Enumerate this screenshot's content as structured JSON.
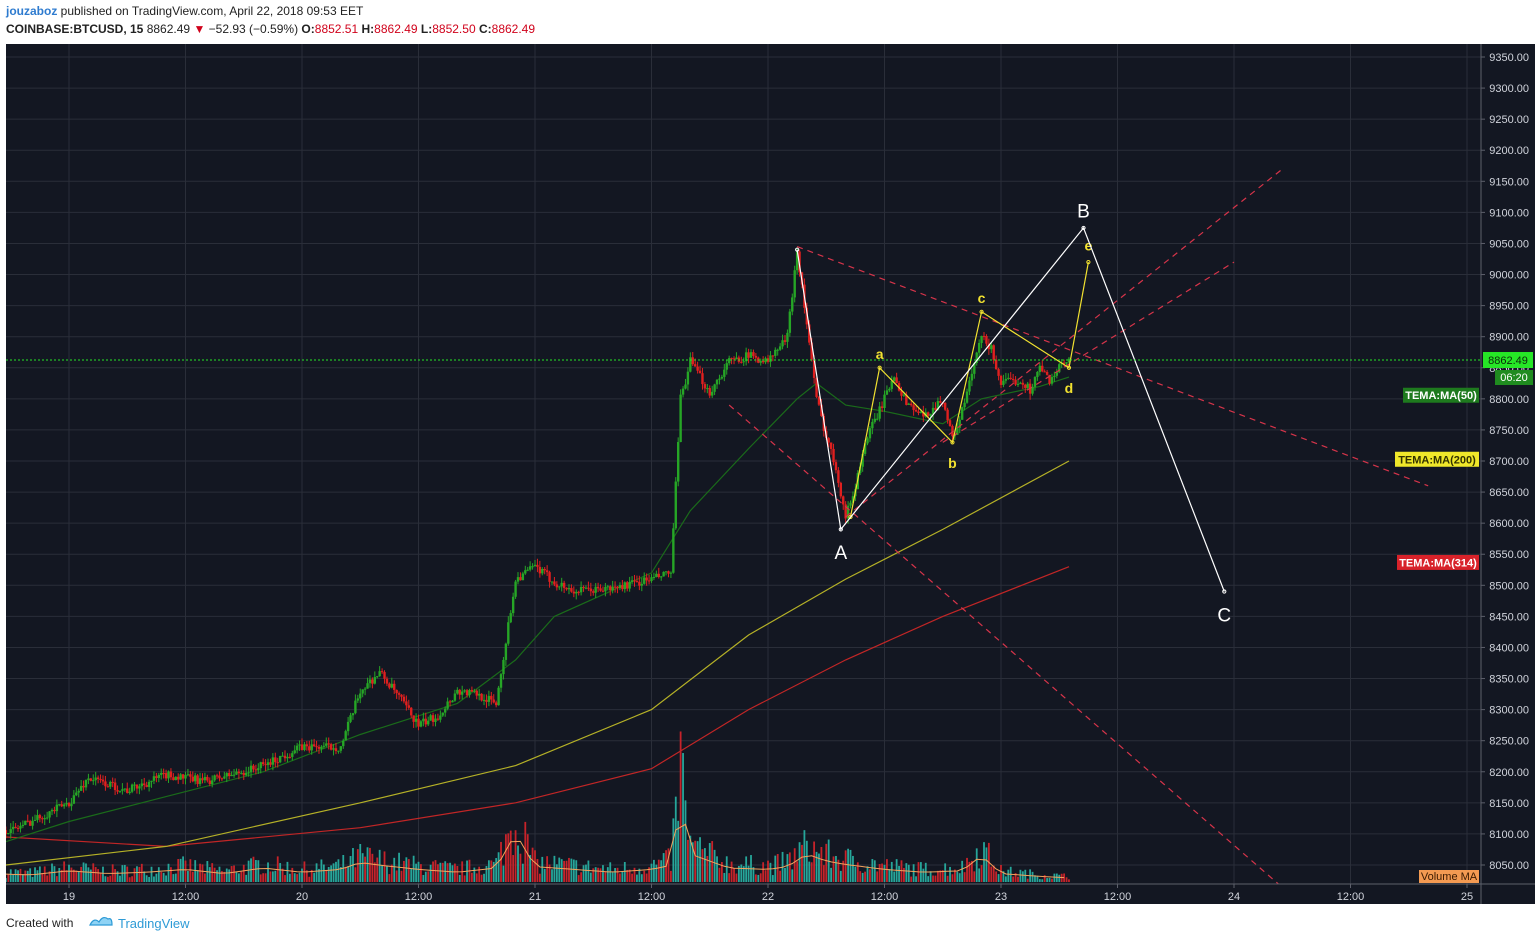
{
  "header": {
    "author": "jouzaboz",
    "published_text": " published on TradingView.com, April 22, 2018 09:53 EET",
    "symbol": "COINBASE:BTCUSD, 15",
    "last": "8862.49",
    "change": "−52.93 (−0.59%)",
    "o_label": "O:",
    "o_value": "8852.51",
    "h_label": "H:",
    "h_value": "8862.49",
    "l_label": "L:",
    "l_value": "8852.50",
    "c_label": "C:",
    "c_value": "8862.49"
  },
  "footer": {
    "created_with": "Created with",
    "brand": "TradingView"
  },
  "colors": {
    "background": "#131722",
    "grid": "#2a2e39",
    "up": "#26a626",
    "down": "#e0201f",
    "volume_up": "#26a69a",
    "volume_down": "#c6232a",
    "price_line": "#26e626",
    "ma50": "#1a6b1a",
    "ma200": "#b5b127",
    "ma314": "#c12626",
    "wave_white": "#ffffff",
    "wave_yellow": "#f2e230",
    "channel": "#d6344a"
  },
  "chart_data": {
    "type": "candlestick",
    "x_ticks": [
      "19",
      "12:00",
      "20",
      "12:00",
      "21",
      "12:00",
      "22",
      "12:00",
      "23",
      "12:00",
      "24",
      "12:00",
      "25"
    ],
    "y_ticks": [
      "9350.00",
      "9300.00",
      "9250.00",
      "9200.00",
      "9150.00",
      "9100.00",
      "9050.00",
      "9000.00",
      "8950.00",
      "8900.00",
      "8850.00",
      "8800.00",
      "8750.00",
      "8700.00",
      "8650.00",
      "8600.00",
      "8550.00",
      "8500.00",
      "8450.00",
      "8400.00",
      "8350.00",
      "8300.00",
      "8250.00",
      "8200.00",
      "8150.00",
      "8100.00",
      "8050.00"
    ],
    "ylim": [
      8020,
      9380
    ],
    "time_unit": "hours since Apr 19 00:00",
    "last_price": 8862.49,
    "last_price_label": "8862.49",
    "countdown_label": "06:20",
    "indicator_labels": {
      "ma50": "TEMA:MA(50)",
      "ma200": "TEMA:MA(200)",
      "ma314": "TEMA:MA(314)",
      "volume_ma": "Volume MA"
    },
    "price_path": [
      [
        -12,
        8120
      ],
      [
        -6,
        8105
      ],
      [
        0,
        8150
      ],
      [
        2,
        8190
      ],
      [
        6,
        8170
      ],
      [
        10,
        8195
      ],
      [
        14,
        8185
      ],
      [
        18,
        8200
      ],
      [
        20,
        8210
      ],
      [
        24,
        8240
      ],
      [
        28,
        8240
      ],
      [
        30,
        8330
      ],
      [
        32,
        8360
      ],
      [
        34,
        8320
      ],
      [
        36,
        8275
      ],
      [
        38,
        8290
      ],
      [
        40,
        8330
      ],
      [
        42,
        8325
      ],
      [
        44,
        8310
      ],
      [
        46,
        8510
      ],
      [
        48,
        8530
      ],
      [
        50,
        8505
      ],
      [
        52,
        8490
      ],
      [
        56,
        8495
      ],
      [
        60,
        8510
      ],
      [
        62,
        8520
      ],
      [
        63,
        8800
      ],
      [
        64,
        8860
      ],
      [
        66,
        8810
      ],
      [
        68,
        8860
      ],
      [
        70,
        8870
      ],
      [
        72,
        8860
      ],
      [
        74,
        8900
      ],
      [
        75,
        9040
      ],
      [
        77,
        8800
      ],
      [
        78,
        8740
      ],
      [
        79,
        8690
      ],
      [
        80,
        8610
      ],
      [
        81,
        8660
      ],
      [
        82,
        8730
      ],
      [
        84,
        8800
      ],
      [
        85,
        8840
      ],
      [
        86,
        8800
      ],
      [
        88,
        8770
      ],
      [
        90,
        8800
      ],
      [
        91,
        8735
      ],
      [
        92,
        8780
      ],
      [
        93,
        8840
      ],
      [
        94,
        8900
      ],
      [
        95,
        8880
      ],
      [
        96,
        8825
      ],
      [
        98,
        8830
      ],
      [
        99,
        8815
      ],
      [
        100,
        8850
      ],
      [
        101,
        8830
      ],
      [
        102,
        8850
      ],
      [
        103,
        8862
      ]
    ],
    "volume_path": [
      [
        -12,
        18
      ],
      [
        -8,
        12
      ],
      [
        -4,
        10
      ],
      [
        0,
        16
      ],
      [
        4,
        12
      ],
      [
        8,
        14
      ],
      [
        12,
        18
      ],
      [
        16,
        12
      ],
      [
        20,
        20
      ],
      [
        24,
        14
      ],
      [
        28,
        18
      ],
      [
        30,
        28
      ],
      [
        32,
        24
      ],
      [
        36,
        18
      ],
      [
        40,
        14
      ],
      [
        44,
        20
      ],
      [
        46,
        70
      ],
      [
        48,
        22
      ],
      [
        52,
        18
      ],
      [
        56,
        14
      ],
      [
        60,
        18
      ],
      [
        62,
        24
      ],
      [
        63,
        125
      ],
      [
        64,
        40
      ],
      [
        68,
        20
      ],
      [
        72,
        18
      ],
      [
        74,
        22
      ],
      [
        76,
        40
      ],
      [
        78,
        30
      ],
      [
        80,
        25
      ],
      [
        84,
        18
      ],
      [
        88,
        14
      ],
      [
        92,
        16
      ],
      [
        94,
        38
      ],
      [
        96,
        12
      ],
      [
        100,
        8
      ],
      [
        103,
        6
      ]
    ],
    "ma50_path": [
      [
        -12,
        8060
      ],
      [
        0,
        8120
      ],
      [
        10,
        8160
      ],
      [
        20,
        8200
      ],
      [
        30,
        8260
      ],
      [
        40,
        8310
      ],
      [
        46,
        8380
      ],
      [
        50,
        8450
      ],
      [
        60,
        8520
      ],
      [
        64,
        8620
      ],
      [
        70,
        8720
      ],
      [
        75,
        8800
      ],
      [
        77,
        8825
      ],
      [
        80,
        8790
      ],
      [
        84,
        8780
      ],
      [
        90,
        8760
      ],
      [
        94,
        8800
      ],
      [
        100,
        8820
      ],
      [
        103,
        8835
      ]
    ],
    "ma200_path": [
      [
        -12,
        8040
      ],
      [
        10,
        8080
      ],
      [
        30,
        8150
      ],
      [
        46,
        8210
      ],
      [
        60,
        8300
      ],
      [
        70,
        8420
      ],
      [
        80,
        8510
      ],
      [
        90,
        8590
      ],
      [
        103,
        8700
      ]
    ],
    "ma314_path": [
      [
        -12,
        8100
      ],
      [
        10,
        8080
      ],
      [
        30,
        8110
      ],
      [
        46,
        8150
      ],
      [
        60,
        8205
      ],
      [
        70,
        8300
      ],
      [
        80,
        8380
      ],
      [
        90,
        8450
      ],
      [
        103,
        8530
      ]
    ],
    "wave_abc": {
      "points": [
        [
          75,
          9040
        ],
        [
          79.5,
          8590
        ],
        [
          104.5,
          9075
        ],
        [
          119,
          8490
        ]
      ],
      "labels": [
        "A",
        "B",
        "C"
      ],
      "label_points": [
        [
          79.5,
          8550
        ],
        [
          104.5,
          9100
        ],
        [
          119,
          8450
        ]
      ]
    },
    "wave_abcde": {
      "points": [
        [
          80.5,
          8610
        ],
        [
          83.5,
          8850
        ],
        [
          91,
          8730
        ],
        [
          94,
          8940
        ],
        [
          103,
          8850
        ],
        [
          105,
          9020
        ]
      ],
      "labels": [
        "a",
        "b",
        "c",
        "d",
        "e"
      ],
      "label_points": [
        [
          83.5,
          8870
        ],
        [
          91,
          8695
        ],
        [
          94,
          8960
        ],
        [
          103,
          8815
        ],
        [
          105,
          9045
        ]
      ]
    },
    "channel_lines": [
      [
        [
          75,
          9045
        ],
        [
          140,
          8660
        ]
      ],
      [
        [
          68,
          8790
        ],
        [
          126,
          8000
        ]
      ],
      [
        [
          80,
          8610
        ],
        [
          125,
          9170
        ]
      ],
      [
        [
          90,
          8730
        ],
        [
          120,
          9020
        ]
      ]
    ]
  }
}
